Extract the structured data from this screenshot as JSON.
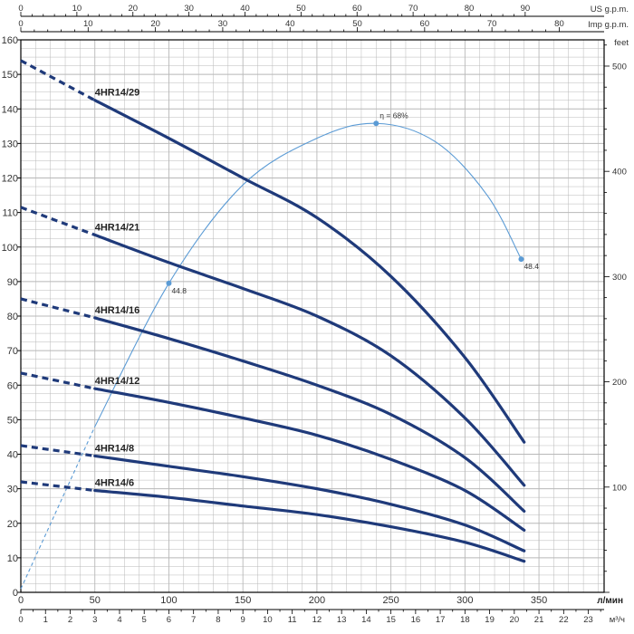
{
  "chart_data": {
    "type": "line",
    "x_axis": {
      "label": "л/мин",
      "range": [
        0,
        350
      ],
      "ticks": [
        0,
        50,
        100,
        150,
        200,
        250,
        300,
        350
      ],
      "labeled_ticks": [
        "0",
        "50",
        "100",
        "150",
        "200",
        "250",
        "300",
        "350"
      ]
    },
    "y_axis": {
      "label": "",
      "range": [
        0,
        160
      ],
      "ticks": [
        0,
        10,
        20,
        30,
        40,
        50,
        60,
        70,
        80,
        90,
        100,
        110,
        120,
        130,
        140,
        150,
        160
      ]
    },
    "right_axis": {
      "label": "feet",
      "ticks": [
        100,
        200,
        300,
        400,
        500
      ],
      "feet_per_meter": 3.28084
    },
    "top_axis_us": {
      "label": "US g.p.m.",
      "max": 90,
      "ticks": [
        0,
        10,
        20,
        30,
        40,
        50,
        60,
        70,
        80,
        90
      ],
      "lpm_per_unit": 3.78541
    },
    "top_axis_imp": {
      "label": "Imp g.p.m.",
      "max": 80,
      "ticks": [
        0,
        10,
        20,
        30,
        40,
        50,
        60,
        70,
        80
      ],
      "lpm_per_unit": 4.54609
    },
    "bottom_axis_m3h": {
      "label": "м³/ч",
      "max": 24,
      "ticks": [
        0,
        1,
        2,
        3,
        4,
        5,
        6,
        7,
        8,
        9,
        10,
        11,
        12,
        13,
        14,
        15,
        16,
        17,
        18,
        19,
        20,
        21,
        22,
        23
      ],
      "lpm_per_unit": 16.6667
    },
    "grid": true,
    "series": [
      {
        "name": "4HR14/29",
        "dashed_until_x": 50,
        "x": [
          0,
          50,
          100,
          150,
          200,
          250,
          300,
          340
        ],
        "y": [
          154,
          142.5,
          131.5,
          120,
          108.5,
          91.5,
          68,
          43.5
        ]
      },
      {
        "name": "4HR14/21",
        "dashed_until_x": 50,
        "x": [
          0,
          50,
          100,
          150,
          200,
          250,
          300,
          340
        ],
        "y": [
          111.5,
          103.5,
          95.5,
          88,
          80,
          68.5,
          50.5,
          31
        ]
      },
      {
        "name": "4HR14/16",
        "dashed_until_x": 50,
        "x": [
          0,
          50,
          100,
          150,
          200,
          250,
          300,
          340
        ],
        "y": [
          85,
          79.5,
          73.5,
          67,
          60,
          51.5,
          39,
          23.5
        ]
      },
      {
        "name": "4HR14/12",
        "dashed_until_x": 50,
        "x": [
          0,
          50,
          100,
          150,
          200,
          250,
          300,
          340
        ],
        "y": [
          63.5,
          59,
          55,
          50.5,
          45.5,
          38.5,
          29.5,
          18
        ]
      },
      {
        "name": "4HR14/8",
        "dashed_until_x": 50,
        "x": [
          0,
          50,
          100,
          150,
          200,
          250,
          300,
          340
        ],
        "y": [
          42.5,
          39.5,
          36.5,
          33.5,
          30,
          25.5,
          19.5,
          12
        ]
      },
      {
        "name": "4HR14/6",
        "dashed_until_x": 50,
        "x": [
          0,
          50,
          100,
          150,
          200,
          250,
          300,
          340
        ],
        "y": [
          32,
          29.5,
          27.5,
          25,
          22.5,
          19,
          14.5,
          9
        ]
      }
    ],
    "efficiency_curve": {
      "dashed_until_x": 50,
      "x": [
        0,
        50,
        100,
        150,
        200,
        240,
        280,
        315,
        338
      ],
      "y": [
        1,
        48,
        89.5,
        118,
        131.5,
        135.8,
        130.5,
        115,
        96.5
      ],
      "points": [
        {
          "x": 100,
          "y": 89.5,
          "label": "44.8"
        },
        {
          "x": 240,
          "y": 135.8,
          "label": "η = 68%"
        },
        {
          "x": 338,
          "y": 96.5,
          "label": "48.4"
        }
      ]
    },
    "colors": {
      "series": "#1f3a7a",
      "efficiency": "#5b9bd5",
      "grid": "#b8b8b8",
      "axis": "#000000"
    }
  }
}
